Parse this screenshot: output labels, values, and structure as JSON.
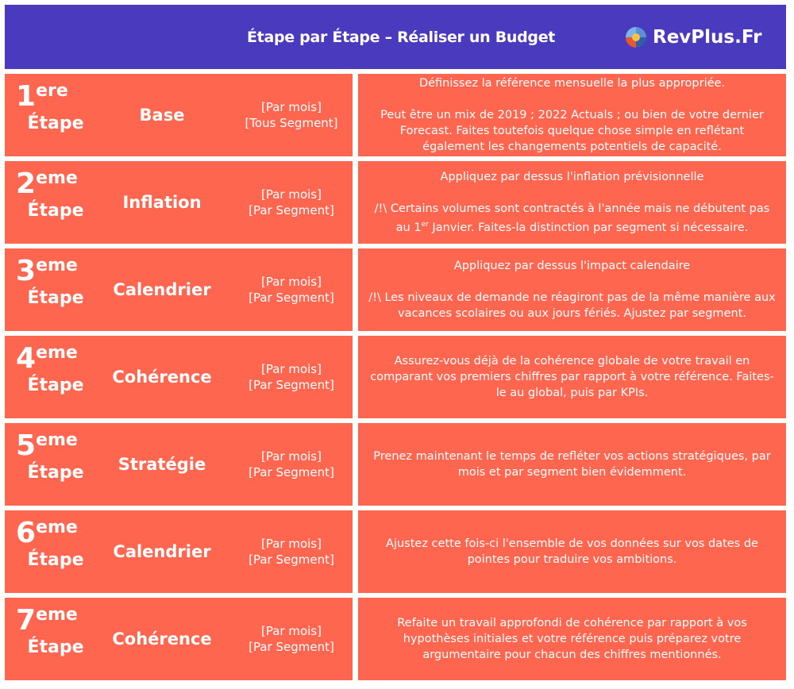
{
  "header": {
    "title": "Étape par Étape – Réaliser un Budget",
    "logo_text": "RevPlus.Fr",
    "logo_icon": "pie-chart-logo-icon"
  },
  "colors": {
    "header_bg": "#4a3abd",
    "box_bg": "#ff6650",
    "text": "#ffffff"
  },
  "steps": [
    {
      "num": "1",
      "suffix": "ere",
      "etape": "Étape",
      "name": "Base",
      "tag1": "[Par mois]",
      "tag2": "[Tous Segment]",
      "paras": [
        [
          "Définissez la référence mensuelle la plus appropriée."
        ],
        [
          "Peut être un mix de 2019 ; 2022 Actuals ; ou bien de votre dernier Forecast. Faites toutefois quelque chose simple en reflétant également les changements potentiels de capacité."
        ]
      ]
    },
    {
      "num": "2",
      "suffix": "eme",
      "etape": "Étape",
      "name": "Inflation",
      "tag1": "[Par mois]",
      "tag2": "[Par Segment]",
      "paras": [
        [
          "Appliquez par dessus l'inflation prévisionnelle"
        ],
        [
          "/!\\ Certains volumes sont contractés à l'année mais ne débutent pas au 1",
          "er",
          " Janvier. Faites-la distinction par segment si nécessaire."
        ]
      ]
    },
    {
      "num": "3",
      "suffix": "eme",
      "etape": "Étape",
      "name": "Calendrier",
      "tag1": "[Par mois]",
      "tag2": "[Par Segment]",
      "paras": [
        [
          "Appliquez par dessus l'impact calendaire"
        ],
        [
          "/!\\ Les niveaux de demande ne réagiront pas de la même manière aux vacances scolaires ou aux jours fériés. Ajustez par segment."
        ]
      ]
    },
    {
      "num": "4",
      "suffix": "eme",
      "etape": "Étape",
      "name": "Cohérence",
      "tag1": "[Par mois]",
      "tag2": "[Par Segment]",
      "paras": [
        [
          "Assurez-vous déjà de la cohérence globale de votre travail en comparant vos premiers chiffres par rapport à votre référence. Faites-le au global, puis par KPIs."
        ]
      ]
    },
    {
      "num": "5",
      "suffix": "eme",
      "etape": "Étape",
      "name": "Stratégie",
      "tag1": "[Par mois]",
      "tag2": "[Par Segment]",
      "paras": [
        [
          "Prenez maintenant le temps de refléter vos actions stratégiques, par mois et par segment bien évidemment."
        ]
      ]
    },
    {
      "num": "6",
      "suffix": "eme",
      "etape": "Étape",
      "name": "Calendrier",
      "tag1": "[Par mois]",
      "tag2": "[Par Segment]",
      "paras": [
        [
          "Ajustez cette fois-ci l'ensemble de vos données sur vos dates de pointes pour traduire vos ambitions."
        ]
      ]
    },
    {
      "num": "7",
      "suffix": "eme",
      "etape": "Étape",
      "name": "Cohérence",
      "tag1": "[Par mois]",
      "tag2": "[Par Segment]",
      "paras": [
        [
          "Refaite un travail approfondi de cohérence par rapport à vos hypothèses initiales et votre référence puis préparez votre argumentaire pour chacun des chiffres mentionnés."
        ]
      ]
    }
  ]
}
